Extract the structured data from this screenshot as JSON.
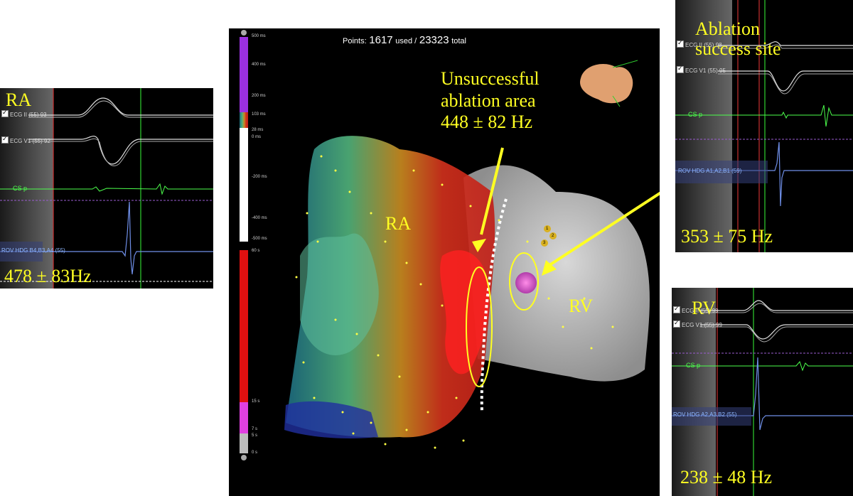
{
  "left_panel": {
    "chamber": "RA",
    "ecg_ii": "ECG II (55)",
    "ecg_ii_val": "93",
    "ecg_v1": "ECG V1 (55)",
    "ecg_v1_val": "92",
    "csp": "CS p",
    "rov": "ROV HDG  B4,B3,A4 (55)",
    "freq": "478 ± 83Hz"
  },
  "center": {
    "points_label": "Points:",
    "points_used": "1617",
    "used_word": "used /",
    "points_total": "23323",
    "total_word": "total",
    "label_ra": "RA",
    "label_rv": "RV",
    "annotation_line1": "Unsuccessful",
    "annotation_line2": "ablation area",
    "annotation_line3": "448 ± 82 Hz",
    "upper_scale": [
      "500 ms",
      "400 ms",
      "200 ms",
      "103 ms",
      "28 ms",
      "0 ms",
      "-200 ms",
      "-400 ms",
      "-500 ms"
    ],
    "lower_scale": [
      "60 s",
      "15 s",
      "7 s",
      "5 s",
      "0 s"
    ],
    "markers": [
      "1",
      "2",
      "3"
    ]
  },
  "right_top_panel": {
    "title_line1": "Ablation",
    "title_line2": "success  site",
    "ecg_ii": "ECG II (55)",
    "ecg_ii_val": "98",
    "ecg_v1": "ECG V1 (55)",
    "ecg_v1_val": "95",
    "csp": "CS p",
    "rov": "ROV HDG   A1,A2,B1 (59)",
    "freq": "353 ± 75 Hz"
  },
  "right_bottom_panel": {
    "chamber": "RV",
    "ecg_ii": "ECG II (55)",
    "ecg_ii_val": "99",
    "ecg_v1": "ECG V1 (55)",
    "ecg_v1_val": "99",
    "csp": "CS p",
    "rov": "ROV HDG   A2,A3,B2 (55)",
    "freq": "238 ± 48 Hz"
  },
  "colors": {
    "annotation": "#ffff22",
    "ecg_trace": "#e0e0e0",
    "cs_trace": "#4cff4c",
    "rov_trace": "#6f8fe8",
    "time_cursor": "#30d030",
    "red_cursor": "#c83030"
  }
}
